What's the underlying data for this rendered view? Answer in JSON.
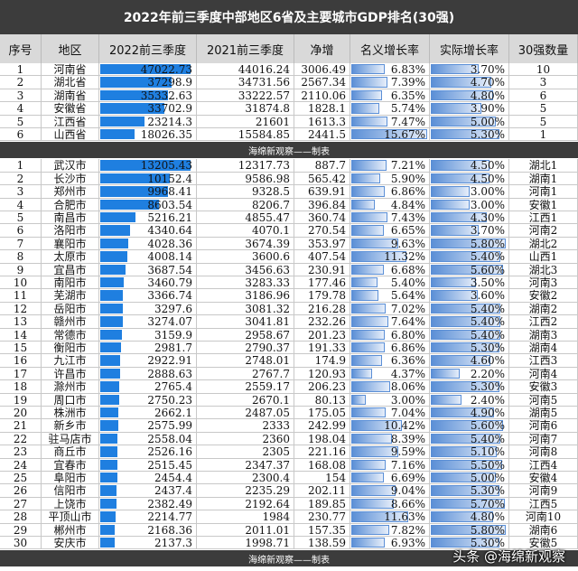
{
  "title": "2022年前三季度中部地区6省及主要城市GDP排名(30强)",
  "headers": [
    "序号",
    "地区",
    "2022前三季度",
    "2021前三季度",
    "净增",
    "名义增长率",
    "实际增长率",
    "30强数量"
  ],
  "divider_text": "海绵新观察——制表",
  "watermark": "头条 @海绵新观察",
  "colors": {
    "header_bg": "#d9d9d9",
    "title_bg": "#3c3c3c",
    "gdp_bar": "#1f7fe0",
    "rate_bar": "#5b8fd6"
  },
  "chart_data": [
    {
      "type": "table",
      "name": "provinces",
      "rows": [
        {
          "no": "1",
          "region": "河南省",
          "gdp2022": "47022.73",
          "gdp2021": "44016.24",
          "increase": "3006.49",
          "nominal": "6.83%",
          "real": "3.70%",
          "count": "10"
        },
        {
          "no": "2",
          "region": "湖北省",
          "gdp2022": "37298.9",
          "gdp2021": "34731.56",
          "increase": "2567.34",
          "nominal": "7.39%",
          "real": "4.70%",
          "count": "3"
        },
        {
          "no": "3",
          "region": "湖南省",
          "gdp2022": "35332.63",
          "gdp2021": "33222.57",
          "increase": "2110.06",
          "nominal": "6.35%",
          "real": "4.80%",
          "count": "6"
        },
        {
          "no": "4",
          "region": "安徽省",
          "gdp2022": "33702.9",
          "gdp2021": "31874.8",
          "increase": "1828.1",
          "nominal": "5.74%",
          "real": "3.90%",
          "count": "5"
        },
        {
          "no": "5",
          "region": "江西省",
          "gdp2022": "23214.3",
          "gdp2021": "21601",
          "increase": "1613.3",
          "nominal": "7.47%",
          "real": "5.00%",
          "count": "5"
        },
        {
          "no": "6",
          "region": "山西省",
          "gdp2022": "18026.35",
          "gdp2021": "15584.85",
          "increase": "2441.5",
          "nominal": "15.67%",
          "real": "5.30%",
          "count": "1"
        }
      ]
    },
    {
      "type": "table",
      "name": "cities",
      "rows": [
        {
          "no": "1",
          "region": "武汉市",
          "gdp2022": "13205.43",
          "gdp2021": "12317.73",
          "increase": "887.7",
          "nominal": "7.21%",
          "real": "4.50%",
          "count": "湖北1"
        },
        {
          "no": "2",
          "region": "长沙市",
          "gdp2022": "10152.4",
          "gdp2021": "9586.98",
          "increase": "565.42",
          "nominal": "5.90%",
          "real": "4.50%",
          "count": "湖南1"
        },
        {
          "no": "3",
          "region": "郑州市",
          "gdp2022": "9968.41",
          "gdp2021": "9328.5",
          "increase": "639.91",
          "nominal": "6.86%",
          "real": "3.00%",
          "count": "河南1"
        },
        {
          "no": "4",
          "region": "合肥市",
          "gdp2022": "8603.54",
          "gdp2021": "8206.7",
          "increase": "396.84",
          "nominal": "4.84%",
          "real": "3.00%",
          "count": "安徽1"
        },
        {
          "no": "5",
          "region": "南昌市",
          "gdp2022": "5216.21",
          "gdp2021": "4855.47",
          "increase": "360.74",
          "nominal": "7.43%",
          "real": "4.30%",
          "count": "江西1"
        },
        {
          "no": "6",
          "region": "洛阳市",
          "gdp2022": "4340.64",
          "gdp2021": "4070.1",
          "increase": "270.54",
          "nominal": "6.65%",
          "real": "3.70%",
          "count": "河南2"
        },
        {
          "no": "7",
          "region": "襄阳市",
          "gdp2022": "4028.36",
          "gdp2021": "3674.39",
          "increase": "353.97",
          "nominal": "9.63%",
          "real": "5.80%",
          "count": "湖北2"
        },
        {
          "no": "8",
          "region": "太原市",
          "gdp2022": "4008.14",
          "gdp2021": "3600.6",
          "increase": "407.54",
          "nominal": "11.32%",
          "real": "5.40%",
          "count": "山西1"
        },
        {
          "no": "9",
          "region": "宜昌市",
          "gdp2022": "3687.54",
          "gdp2021": "3456.63",
          "increase": "230.91",
          "nominal": "6.68%",
          "real": "5.60%",
          "count": "湖北3"
        },
        {
          "no": "10",
          "region": "南阳市",
          "gdp2022": "3460.79",
          "gdp2021": "3283.33",
          "increase": "177.46",
          "nominal": "5.40%",
          "real": "3.50%",
          "count": "河南3"
        },
        {
          "no": "11",
          "region": "芜湖市",
          "gdp2022": "3366.74",
          "gdp2021": "3186.96",
          "increase": "179.78",
          "nominal": "5.64%",
          "real": "3.60%",
          "count": "安徽2"
        },
        {
          "no": "12",
          "region": "岳阳市",
          "gdp2022": "3297.6",
          "gdp2021": "3081.32",
          "increase": "216.28",
          "nominal": "7.02%",
          "real": "5.40%",
          "count": "湖南2"
        },
        {
          "no": "13",
          "region": "赣州市",
          "gdp2022": "3274.07",
          "gdp2021": "3041.81",
          "increase": "232.26",
          "nominal": "7.64%",
          "real": "5.40%",
          "count": "江西2"
        },
        {
          "no": "14",
          "region": "常德市",
          "gdp2022": "3159.9",
          "gdp2021": "2958.67",
          "increase": "201.23",
          "nominal": "6.80%",
          "real": "5.40%",
          "count": "湖南3"
        },
        {
          "no": "15",
          "region": "衡阳市",
          "gdp2022": "2981.7",
          "gdp2021": "2790.37",
          "increase": "191.33",
          "nominal": "6.86%",
          "real": "5.30%",
          "count": "湖南4"
        },
        {
          "no": "16",
          "region": "九江市",
          "gdp2022": "2922.91",
          "gdp2021": "2748.01",
          "increase": "174.9",
          "nominal": "6.36%",
          "real": "4.60%",
          "count": "江西3"
        },
        {
          "no": "17",
          "region": "许昌市",
          "gdp2022": "2888.63",
          "gdp2021": "2767.7",
          "increase": "120.93",
          "nominal": "4.37%",
          "real": "2.20%",
          "count": "河南4"
        },
        {
          "no": "18",
          "region": "滁州市",
          "gdp2022": "2765.4",
          "gdp2021": "2559.17",
          "increase": "206.23",
          "nominal": "8.06%",
          "real": "5.30%",
          "count": "安徽3"
        },
        {
          "no": "19",
          "region": "周口市",
          "gdp2022": "2750.23",
          "gdp2021": "2670.1",
          "increase": "80.13",
          "nominal": "3.00%",
          "real": "2.40%",
          "count": "河南5"
        },
        {
          "no": "20",
          "region": "株洲市",
          "gdp2022": "2662.1",
          "gdp2021": "2487.05",
          "increase": "175.05",
          "nominal": "7.04%",
          "real": "4.90%",
          "count": "湖南5"
        },
        {
          "no": "21",
          "region": "新乡市",
          "gdp2022": "2575.99",
          "gdp2021": "2333",
          "increase": "242.99",
          "nominal": "10.42%",
          "real": "5.60%",
          "count": "河南6"
        },
        {
          "no": "22",
          "region": "驻马店市",
          "gdp2022": "2558.04",
          "gdp2021": "2360",
          "increase": "198.04",
          "nominal": "8.39%",
          "real": "5.40%",
          "count": "河南7"
        },
        {
          "no": "23",
          "region": "商丘市",
          "gdp2022": "2526.16",
          "gdp2021": "2305",
          "increase": "221.16",
          "nominal": "9.59%",
          "real": "5.10%",
          "count": "河南8"
        },
        {
          "no": "24",
          "region": "宜春市",
          "gdp2022": "2515.45",
          "gdp2021": "2347.37",
          "increase": "168.08",
          "nominal": "7.16%",
          "real": "5.50%",
          "count": "江西4"
        },
        {
          "no": "25",
          "region": "阜阳市",
          "gdp2022": "2454.4",
          "gdp2021": "2300.4",
          "increase": "154",
          "nominal": "6.69%",
          "real": "5.00%",
          "count": "安徽4"
        },
        {
          "no": "26",
          "region": "信阳市",
          "gdp2022": "2437.4",
          "gdp2021": "2235.29",
          "increase": "202.11",
          "nominal": "9.04%",
          "real": "5.30%",
          "count": "河南9"
        },
        {
          "no": "27",
          "region": "上饶市",
          "gdp2022": "2382.49",
          "gdp2021": "2192.64",
          "increase": "189.85",
          "nominal": "8.66%",
          "real": "5.70%",
          "count": "江西5"
        },
        {
          "no": "28",
          "region": "平顶山市",
          "gdp2022": "2214.77",
          "gdp2021": "1984",
          "increase": "230.77",
          "nominal": "11.63%",
          "real": "4.80%",
          "count": "河南10"
        },
        {
          "no": "29",
          "region": "郴州市",
          "gdp2022": "2168.36",
          "gdp2021": "2011.01",
          "increase": "157.35",
          "nominal": "7.82%",
          "real": "5.80%",
          "count": "湖南6"
        },
        {
          "no": "30",
          "region": "安庆市",
          "gdp2022": "2137.3",
          "gdp2021": "1998.71",
          "increase": "138.59",
          "nominal": "6.93%",
          "real": "5.30%",
          "count": "安徽5"
        }
      ]
    }
  ]
}
